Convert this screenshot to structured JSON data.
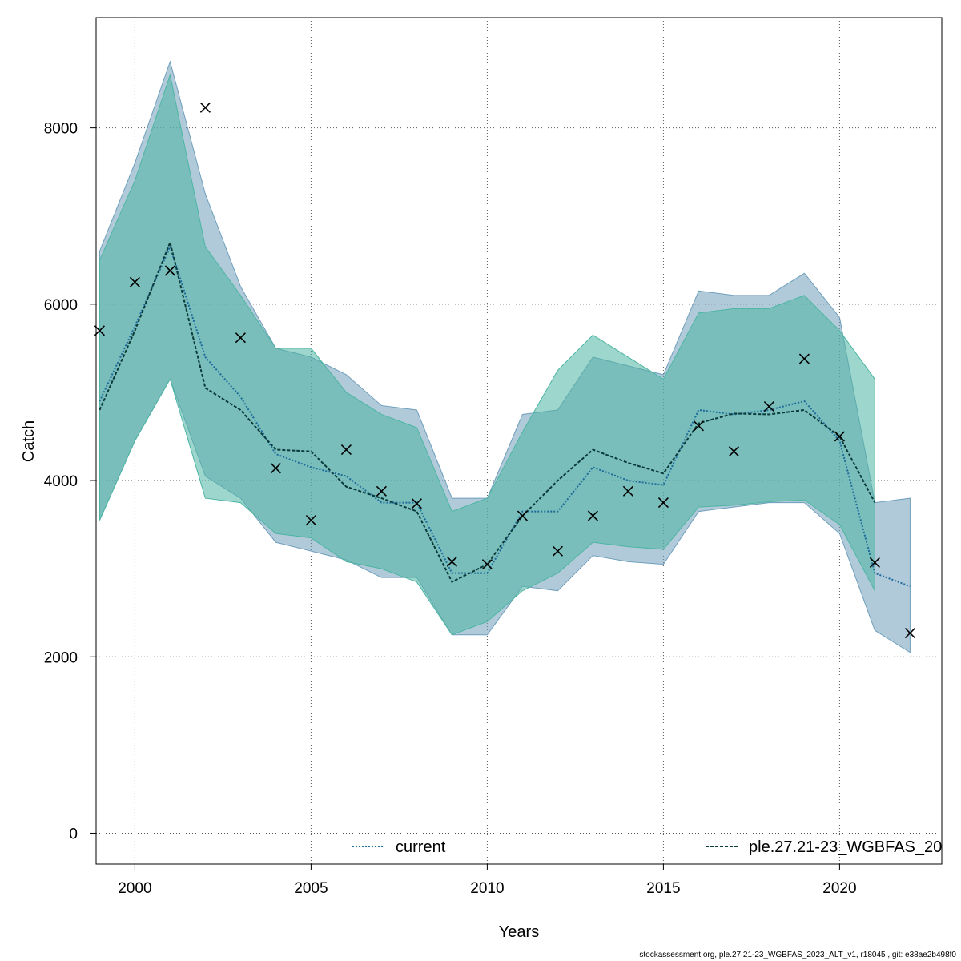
{
  "chart_data": {
    "type": "line",
    "xlabel": "Years",
    "ylabel": "Catch",
    "xlim": [
      1998.9,
      2022.9
    ],
    "ylim": [
      -350,
      9250
    ],
    "x_ticks": [
      2000,
      2005,
      2010,
      2015,
      2020
    ],
    "y_ticks": [
      0,
      2000,
      4000,
      6000,
      8000
    ],
    "grid": true,
    "legend_placement": "bottom",
    "series": [
      {
        "name": "current",
        "color": "#1f6b9c",
        "line_style": "dotted",
        "band_color": "#6f9fbc",
        "x": [
          1999,
          2000,
          2001,
          2002,
          2003,
          2004,
          2005,
          2006,
          2007,
          2008,
          2009,
          2010,
          2011,
          2012,
          2013,
          2014,
          2015,
          2016,
          2017,
          2018,
          2019,
          2020,
          2021,
          2022
        ],
        "values": [
          4900,
          5750,
          6650,
          5400,
          4950,
          4300,
          4150,
          4050,
          3750,
          3750,
          2950,
          2950,
          3650,
          3650,
          4150,
          4000,
          3950,
          4800,
          4750,
          4800,
          4900,
          4450,
          2950,
          2800
        ],
        "lower": [
          3550,
          4450,
          5150,
          4050,
          3800,
          3300,
          3200,
          3100,
          2900,
          2900,
          2250,
          2250,
          2800,
          2750,
          3150,
          3080,
          3050,
          3650,
          3700,
          3750,
          3750,
          3400,
          2300,
          2050
        ],
        "upper": [
          6600,
          7600,
          8750,
          7250,
          6200,
          5500,
          5400,
          5200,
          4850,
          4800,
          3800,
          3800,
          4750,
          4800,
          5400,
          5300,
          5200,
          6150,
          6100,
          6100,
          6350,
          5850,
          3750,
          3800
        ]
      },
      {
        "name": "ple.27.21-23_WGBFAS_20",
        "color": "#0b3a3a",
        "line_style": "dashed",
        "band_color": "#4db5a2",
        "x": [
          1999,
          2000,
          2001,
          2002,
          2003,
          2004,
          2005,
          2006,
          2007,
          2008,
          2009,
          2010,
          2011,
          2012,
          2013,
          2014,
          2015,
          2016,
          2017,
          2018,
          2019,
          2020,
          2021
        ],
        "values": [
          4800,
          5700,
          6700,
          5050,
          4800,
          4350,
          4330,
          3930,
          3800,
          3650,
          2850,
          3050,
          3600,
          4000,
          4350,
          4200,
          4080,
          4650,
          4760,
          4750,
          4800,
          4500,
          3750
        ],
        "lower": [
          3550,
          4450,
          5150,
          3800,
          3750,
          3400,
          3350,
          3080,
          3000,
          2850,
          2250,
          2400,
          2750,
          2950,
          3300,
          3250,
          3220,
          3700,
          3720,
          3760,
          3780,
          3500,
          2750
        ],
        "upper": [
          6500,
          7400,
          8600,
          6650,
          6100,
          5500,
          5500,
          5000,
          4750,
          4600,
          3650,
          3800,
          4550,
          5250,
          5650,
          5400,
          5150,
          5900,
          5950,
          5950,
          6100,
          5700,
          5150
        ]
      }
    ],
    "observations": {
      "marker": "x",
      "x": [
        1999,
        2000,
        2001,
        2002,
        2003,
        2004,
        2005,
        2006,
        2007,
        2008,
        2009,
        2010,
        2011,
        2012,
        2013,
        2014,
        2015,
        2016,
        2017,
        2018,
        2019,
        2020,
        2021,
        2022
      ],
      "values": [
        5700,
        6250,
        6380,
        8230,
        5620,
        4140,
        3550,
        4350,
        3880,
        3740,
        3080,
        3050,
        3600,
        3200,
        3600,
        3880,
        3750,
        4620,
        4330,
        4840,
        5380,
        4500,
        3070,
        2270
      ]
    }
  },
  "footer": "stockassessment.org, ple.27.21-23_WGBFAS_2023_ALT_v1, r18045 , git: e38ae2b498f0"
}
